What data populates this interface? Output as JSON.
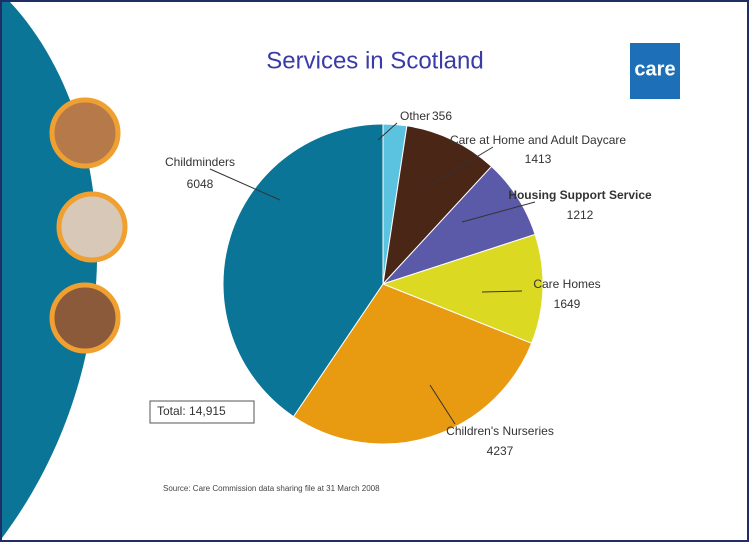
{
  "chart_data": {
    "type": "pie",
    "title": "Services in Scotland",
    "categories": [
      "Other",
      "Care at Home and Adult Daycare",
      "Housing Support Service",
      "Care Homes",
      "Children's Nurseries",
      "Childminders"
    ],
    "values": [
      356,
      1413,
      1212,
      1649,
      4237,
      6048
    ],
    "colors": [
      "#5bc3e0",
      "#4a2616",
      "#5a5aa8",
      "#dcd923",
      "#e89a10",
      "#0b7597"
    ],
    "annotations": [
      "Total: 14,915",
      "Source: Care Commission data sharing file at 31 March 2008"
    ],
    "logo": "care"
  }
}
